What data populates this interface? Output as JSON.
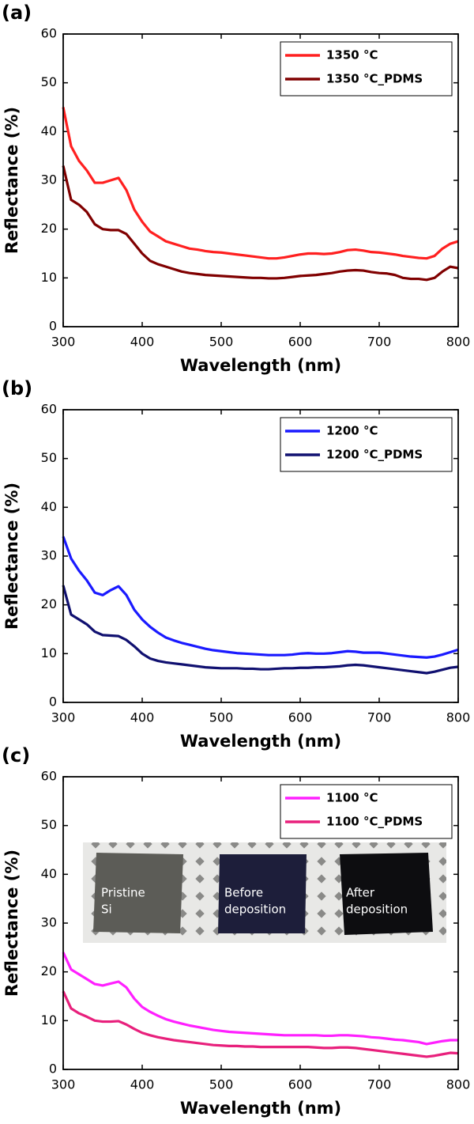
{
  "chart_data": [
    {
      "type": "line",
      "panel_label": "(a)",
      "xlabel": "Wavelength (nm)",
      "ylabel": "Reflectance (%)",
      "xlim": [
        300,
        800
      ],
      "ylim": [
        0,
        60
      ],
      "xticks": [
        300,
        400,
        500,
        600,
        700,
        800
      ],
      "yticks": [
        0,
        10,
        20,
        30,
        40,
        50,
        60
      ],
      "legend": "upper right",
      "x": [
        300,
        310,
        320,
        330,
        340,
        350,
        360,
        370,
        380,
        390,
        400,
        410,
        420,
        430,
        440,
        450,
        460,
        470,
        480,
        490,
        500,
        510,
        520,
        530,
        540,
        550,
        560,
        570,
        580,
        590,
        600,
        610,
        620,
        630,
        640,
        650,
        660,
        670,
        680,
        690,
        700,
        710,
        720,
        730,
        740,
        750,
        760,
        770,
        780,
        790,
        800
      ],
      "series": [
        {
          "name": "1350 °C",
          "color": "#ff2020",
          "values": [
            45,
            37,
            34,
            32,
            29.5,
            29.5,
            30,
            30.5,
            28,
            24,
            21.5,
            19.5,
            18.5,
            17.5,
            17,
            16.5,
            16,
            15.8,
            15.5,
            15.3,
            15.2,
            15,
            14.8,
            14.6,
            14.4,
            14.2,
            14,
            14,
            14.2,
            14.5,
            14.8,
            15,
            15,
            14.9,
            15,
            15.3,
            15.7,
            15.8,
            15.6,
            15.3,
            15.2,
            15,
            14.8,
            14.5,
            14.3,
            14.1,
            14,
            14.5,
            16,
            17,
            17.5
          ]
        },
        {
          "name": "1350 °C_PDMS",
          "color": "#800000",
          "values": [
            33,
            26,
            25,
            23.5,
            21,
            20,
            19.8,
            19.8,
            19,
            17,
            15,
            13.5,
            12.8,
            12.3,
            11.8,
            11.3,
            11,
            10.8,
            10.6,
            10.5,
            10.4,
            10.3,
            10.2,
            10.1,
            10,
            10,
            9.9,
            9.9,
            10,
            10.2,
            10.4,
            10.5,
            10.6,
            10.8,
            11,
            11.3,
            11.5,
            11.6,
            11.5,
            11.2,
            11,
            10.9,
            10.6,
            10,
            9.8,
            9.8,
            9.6,
            10,
            11.3,
            12.3,
            12
          ]
        }
      ]
    },
    {
      "type": "line",
      "panel_label": "(b)",
      "xlabel": "Wavelength (nm)",
      "ylabel": "Reflectance (%)",
      "xlim": [
        300,
        800
      ],
      "ylim": [
        0,
        60
      ],
      "xticks": [
        300,
        400,
        500,
        600,
        700,
        800
      ],
      "yticks": [
        0,
        10,
        20,
        30,
        40,
        50,
        60
      ],
      "legend": "upper right",
      "x": [
        300,
        310,
        320,
        330,
        340,
        350,
        360,
        370,
        380,
        390,
        400,
        410,
        420,
        430,
        440,
        450,
        460,
        470,
        480,
        490,
        500,
        510,
        520,
        530,
        540,
        550,
        560,
        570,
        580,
        590,
        600,
        610,
        620,
        630,
        640,
        650,
        660,
        670,
        680,
        690,
        700,
        710,
        720,
        730,
        740,
        750,
        760,
        770,
        780,
        790,
        800
      ],
      "series": [
        {
          "name": "1200 °C",
          "color": "#1a1aff",
          "values": [
            34,
            29.5,
            27,
            25,
            22.5,
            22,
            23,
            23.8,
            22,
            19,
            17,
            15.5,
            14.3,
            13.3,
            12.7,
            12.2,
            11.8,
            11.4,
            11,
            10.7,
            10.5,
            10.3,
            10.1,
            10,
            9.9,
            9.8,
            9.7,
            9.7,
            9.7,
            9.8,
            10,
            10.1,
            10,
            10,
            10.1,
            10.3,
            10.5,
            10.4,
            10.2,
            10.2,
            10.2,
            10,
            9.8,
            9.6,
            9.4,
            9.3,
            9.2,
            9.4,
            9.8,
            10.3,
            10.8
          ]
        },
        {
          "name": "1200 °C_PDMS",
          "color": "#101070",
          "values": [
            24,
            18,
            17,
            16,
            14.5,
            13.8,
            13.7,
            13.6,
            12.8,
            11.5,
            10,
            9,
            8.5,
            8.2,
            8,
            7.8,
            7.6,
            7.4,
            7.2,
            7.1,
            7,
            7,
            7,
            6.9,
            6.9,
            6.8,
            6.8,
            6.9,
            7,
            7,
            7.1,
            7.1,
            7.2,
            7.2,
            7.3,
            7.4,
            7.6,
            7.7,
            7.6,
            7.4,
            7.2,
            7,
            6.8,
            6.6,
            6.4,
            6.2,
            6,
            6.3,
            6.7,
            7.1,
            7.3
          ]
        }
      ]
    },
    {
      "type": "line",
      "panel_label": "(c)",
      "xlabel": "Wavelength (nm)",
      "ylabel": "Reflectance (%)",
      "xlim": [
        300,
        800
      ],
      "ylim": [
        0,
        60
      ],
      "xticks": [
        300,
        400,
        500,
        600,
        700,
        800
      ],
      "yticks": [
        0,
        10,
        20,
        30,
        40,
        50,
        60
      ],
      "legend": "upper right",
      "inset_labels": [
        [
          "Pristine",
          "Si"
        ],
        [
          "Before",
          "deposition"
        ],
        [
          "After",
          "deposition"
        ]
      ],
      "x": [
        300,
        310,
        320,
        330,
        340,
        350,
        360,
        370,
        380,
        390,
        400,
        410,
        420,
        430,
        440,
        450,
        460,
        470,
        480,
        490,
        500,
        510,
        520,
        530,
        540,
        550,
        560,
        570,
        580,
        590,
        600,
        610,
        620,
        630,
        640,
        650,
        660,
        670,
        680,
        690,
        700,
        710,
        720,
        730,
        740,
        750,
        760,
        770,
        780,
        790,
        800
      ],
      "series": [
        {
          "name": "1100 °C",
          "color": "#ff20ff",
          "values": [
            24,
            20.5,
            19.5,
            18.5,
            17.5,
            17.2,
            17.6,
            18,
            16.8,
            14.5,
            12.8,
            11.8,
            11,
            10.3,
            9.8,
            9.4,
            9,
            8.7,
            8.4,
            8.1,
            7.9,
            7.7,
            7.6,
            7.5,
            7.4,
            7.3,
            7.2,
            7.1,
            7,
            7,
            7,
            7,
            7,
            6.9,
            6.9,
            7,
            7,
            6.9,
            6.8,
            6.6,
            6.5,
            6.3,
            6.1,
            6,
            5.8,
            5.6,
            5.2,
            5.5,
            5.8,
            6,
            6
          ]
        },
        {
          "name": "1100 °C_PDMS",
          "color": "#e8207c",
          "values": [
            16,
            12.5,
            11.5,
            10.8,
            10,
            9.8,
            9.8,
            9.9,
            9.2,
            8.3,
            7.5,
            7,
            6.6,
            6.3,
            6,
            5.8,
            5.6,
            5.4,
            5.2,
            5,
            4.9,
            4.8,
            4.8,
            4.7,
            4.7,
            4.6,
            4.6,
            4.6,
            4.6,
            4.6,
            4.6,
            4.6,
            4.5,
            4.4,
            4.4,
            4.5,
            4.5,
            4.4,
            4.2,
            4,
            3.8,
            3.6,
            3.4,
            3.2,
            3,
            2.8,
            2.6,
            2.8,
            3.1,
            3.4,
            3.3
          ]
        }
      ]
    }
  ]
}
